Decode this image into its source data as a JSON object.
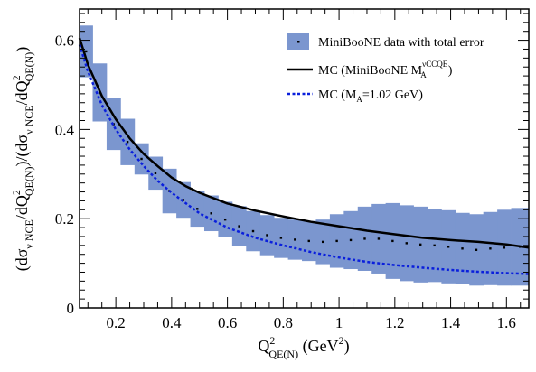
{
  "chart_data": {
    "type": "line",
    "title": "",
    "xlabel": {
      "main": "Q",
      "sup": "2",
      "sub": "QE(N)",
      "unit_open": " (GeV",
      "unit_sup": "2",
      "unit_close": ")"
    },
    "ylabel": {
      "p1": "(dσ",
      "p1_sub": "ν NCE",
      "p2": "/dQ",
      "p2_sup": "2",
      "p2_sub": "QE(N)",
      "p3": ")/(dσ",
      "p3_sub": "ν NCE",
      "p4": "/dQ",
      "p4_sup": "2",
      "p4_sub": "QE(N)",
      "p5": ")"
    },
    "xlim": [
      0.07,
      1.68
    ],
    "ylim": [
      0,
      0.67
    ],
    "grid": false,
    "legend_position": "top-right",
    "x_ticks": [
      0.2,
      0.4,
      0.6,
      0.8,
      1,
      1.2,
      1.4,
      1.6
    ],
    "x_tick_labels": [
      "0.2",
      "0.4",
      "0.6",
      "0.8",
      "1",
      "1.2",
      "1.4",
      "1.6"
    ],
    "y_ticks": [
      0,
      0.2,
      0.4,
      0.6
    ],
    "y_tick_labels": [
      "0",
      "0.2",
      "0.4",
      "0.6"
    ],
    "legend": {
      "data": "MiniBooNE data with total error",
      "mc1_main": "MC (MiniBooNE M",
      "mc1_sup": "νCCQE",
      "mc1_sub": "A",
      "mc1_close": ")",
      "mc2_main": "MC (M",
      "mc2_sub": "A",
      "mc2_rest": "=1.02 GeV)"
    },
    "colors": {
      "band": "#7b96cf",
      "mc1": "#000000",
      "mc2": "#0a1fdc",
      "data": "#000000"
    },
    "data_bins": [
      {
        "x0": 0.07,
        "x1": 0.117,
        "value": 0.575,
        "err": 0.058
      },
      {
        "x0": 0.117,
        "x1": 0.167,
        "value": 0.483,
        "err": 0.065
      },
      {
        "x0": 0.167,
        "x1": 0.217,
        "value": 0.412,
        "err": 0.058
      },
      {
        "x0": 0.217,
        "x1": 0.267,
        "value": 0.372,
        "err": 0.052
      },
      {
        "x0": 0.267,
        "x1": 0.317,
        "value": 0.334,
        "err": 0.035
      },
      {
        "x0": 0.317,
        "x1": 0.367,
        "value": 0.302,
        "err": 0.037
      },
      {
        "x0": 0.367,
        "x1": 0.417,
        "value": 0.262,
        "err": 0.05
      },
      {
        "x0": 0.417,
        "x1": 0.467,
        "value": 0.242,
        "err": 0.04
      },
      {
        "x0": 0.467,
        "x1": 0.517,
        "value": 0.222,
        "err": 0.04
      },
      {
        "x0": 0.517,
        "x1": 0.567,
        "value": 0.212,
        "err": 0.04
      },
      {
        "x0": 0.567,
        "x1": 0.617,
        "value": 0.198,
        "err": 0.04
      },
      {
        "x0": 0.617,
        "x1": 0.667,
        "value": 0.183,
        "err": 0.045
      },
      {
        "x0": 0.667,
        "x1": 0.717,
        "value": 0.172,
        "err": 0.045
      },
      {
        "x0": 0.717,
        "x1": 0.767,
        "value": 0.163,
        "err": 0.045
      },
      {
        "x0": 0.767,
        "x1": 0.817,
        "value": 0.157,
        "err": 0.045
      },
      {
        "x0": 0.817,
        "x1": 0.867,
        "value": 0.153,
        "err": 0.045
      },
      {
        "x0": 0.867,
        "x1": 0.917,
        "value": 0.15,
        "err": 0.045
      },
      {
        "x0": 0.917,
        "x1": 0.967,
        "value": 0.148,
        "err": 0.05
      },
      {
        "x0": 0.967,
        "x1": 1.017,
        "value": 0.15,
        "err": 0.06
      },
      {
        "x0": 1.017,
        "x1": 1.067,
        "value": 0.152,
        "err": 0.065
      },
      {
        "x0": 1.067,
        "x1": 1.117,
        "value": 0.155,
        "err": 0.072
      },
      {
        "x0": 1.117,
        "x1": 1.167,
        "value": 0.155,
        "err": 0.078
      },
      {
        "x0": 1.167,
        "x1": 1.217,
        "value": 0.15,
        "err": 0.085
      },
      {
        "x0": 1.217,
        "x1": 1.267,
        "value": 0.145,
        "err": 0.085
      },
      {
        "x0": 1.267,
        "x1": 1.317,
        "value": 0.142,
        "err": 0.085
      },
      {
        "x0": 1.317,
        "x1": 1.367,
        "value": 0.14,
        "err": 0.082
      },
      {
        "x0": 1.367,
        "x1": 1.417,
        "value": 0.137,
        "err": 0.082
      },
      {
        "x0": 1.417,
        "x1": 1.467,
        "value": 0.133,
        "err": 0.08
      },
      {
        "x0": 1.467,
        "x1": 1.517,
        "value": 0.13,
        "err": 0.08
      },
      {
        "x0": 1.517,
        "x1": 1.567,
        "value": 0.133,
        "err": 0.082
      },
      {
        "x0": 1.567,
        "x1": 1.617,
        "value": 0.135,
        "err": 0.085
      },
      {
        "x0": 1.617,
        "x1": 1.68,
        "value": 0.137,
        "err": 0.087
      }
    ],
    "series": [
      {
        "key": "mc1",
        "x": [
          0.07,
          0.1,
          0.15,
          0.2,
          0.25,
          0.3,
          0.35,
          0.4,
          0.45,
          0.5,
          0.6,
          0.7,
          0.8,
          0.9,
          1.0,
          1.1,
          1.2,
          1.3,
          1.4,
          1.5,
          1.6,
          1.68
        ],
        "y": [
          0.605,
          0.545,
          0.475,
          0.423,
          0.38,
          0.345,
          0.318,
          0.292,
          0.273,
          0.258,
          0.234,
          0.218,
          0.205,
          0.193,
          0.183,
          0.173,
          0.165,
          0.157,
          0.152,
          0.148,
          0.142,
          0.135
        ]
      },
      {
        "key": "mc2",
        "x": [
          0.07,
          0.1,
          0.15,
          0.2,
          0.25,
          0.3,
          0.35,
          0.4,
          0.45,
          0.5,
          0.6,
          0.7,
          0.8,
          0.9,
          1.0,
          1.1,
          1.2,
          1.3,
          1.4,
          1.5,
          1.6,
          1.68
        ],
        "y": [
          0.59,
          0.53,
          0.455,
          0.4,
          0.355,
          0.318,
          0.285,
          0.258,
          0.235,
          0.212,
          0.18,
          0.157,
          0.14,
          0.125,
          0.113,
          0.103,
          0.096,
          0.09,
          0.085,
          0.081,
          0.078,
          0.076
        ]
      }
    ]
  }
}
